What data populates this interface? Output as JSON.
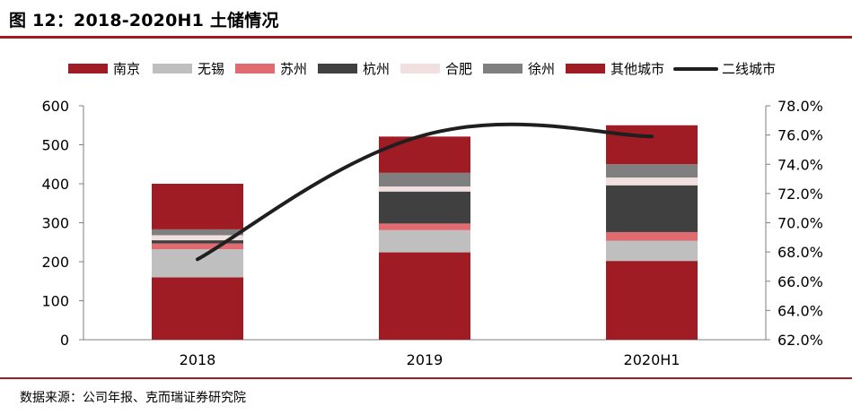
{
  "header": {
    "title": "图 12：2018-2020H1 土储情况"
  },
  "footer": {
    "source": "数据来源：公司年报、克而瑞证券研究院"
  },
  "chart_data": {
    "type": "bar",
    "stacked": true,
    "categories": [
      "2018",
      "2019",
      "2020H1"
    ],
    "series": [
      {
        "name": "南京",
        "color": "#a01c24",
        "values": [
          160,
          224,
          202
        ]
      },
      {
        "name": "无锡",
        "color": "#bfbfbf",
        "values": [
          72,
          57,
          52
        ]
      },
      {
        "name": "苏州",
        "color": "#e06b70",
        "values": [
          15,
          17,
          22
        ]
      },
      {
        "name": "杭州",
        "color": "#404040",
        "values": [
          8,
          82,
          120
        ]
      },
      {
        "name": "合肥",
        "color": "#f2dfdf",
        "values": [
          13,
          13,
          20
        ]
      },
      {
        "name": "徐州",
        "color": "#7f7f7f",
        "values": [
          15,
          35,
          34
        ]
      },
      {
        "name": "其他城市",
        "color": "#a01c24",
        "values": [
          117,
          93,
          100
        ]
      }
    ],
    "line_series": {
      "name": "二线城市",
      "color": "#1f1f1f",
      "axis": "right",
      "values": [
        67.5,
        76.0,
        75.9
      ]
    },
    "yaxis_left": {
      "min": 0,
      "max": 600,
      "ticks": [
        "0",
        "100",
        "200",
        "300",
        "400",
        "500",
        "600"
      ]
    },
    "yaxis_right": {
      "min": 62,
      "max": 78,
      "ticks": [
        "62.0%",
        "64.0%",
        "66.0%",
        "68.0%",
        "70.0%",
        "72.0%",
        "74.0%",
        "76.0%",
        "78.0%"
      ]
    },
    "legend_position": "top",
    "grid": false
  }
}
